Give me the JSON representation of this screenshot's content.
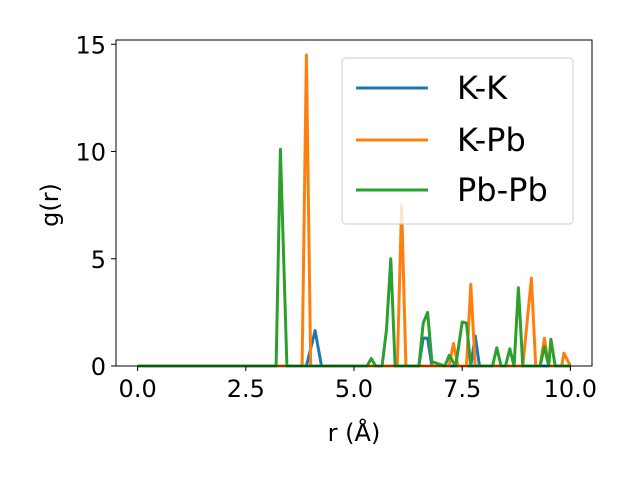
{
  "chart_data": {
    "type": "line",
    "title": "",
    "xlabel": "r (Å)",
    "ylabel": "g(r)",
    "xlim": [
      -0.5,
      10.5
    ],
    "ylim": [
      0,
      15.2
    ],
    "xticks": [
      0.0,
      2.5,
      5.0,
      7.5,
      10.0
    ],
    "xtick_labels": [
      "0.0",
      "2.5",
      "5.0",
      "7.5",
      "10.0"
    ],
    "yticks": [
      0,
      5,
      10,
      15
    ],
    "ytick_labels": [
      "0",
      "5",
      "10",
      "15"
    ],
    "grid": false,
    "legend_position": "top-right",
    "series": [
      {
        "name": "K-K",
        "color": "#1f77b4",
        "points": [
          [
            0.0,
            0
          ],
          [
            3.9,
            0
          ],
          [
            4.1,
            1.65
          ],
          [
            4.25,
            0
          ],
          [
            6.5,
            0
          ],
          [
            6.6,
            1.3
          ],
          [
            6.7,
            1.3
          ],
          [
            6.8,
            0
          ],
          [
            7.7,
            0
          ],
          [
            7.8,
            1.4
          ],
          [
            7.9,
            0
          ],
          [
            10.0,
            0
          ]
        ]
      },
      {
        "name": "K-Pb",
        "color": "#ff7f0e",
        "points": [
          [
            0.0,
            0
          ],
          [
            3.8,
            0
          ],
          [
            3.9,
            14.5
          ],
          [
            4.0,
            0
          ],
          [
            6.0,
            0
          ],
          [
            6.1,
            7.5
          ],
          [
            6.2,
            0
          ],
          [
            7.2,
            0
          ],
          [
            7.3,
            1.05
          ],
          [
            7.4,
            0
          ],
          [
            7.6,
            0
          ],
          [
            7.7,
            3.8
          ],
          [
            7.8,
            0
          ],
          [
            8.9,
            0
          ],
          [
            9.1,
            4.1
          ],
          [
            9.2,
            0
          ],
          [
            9.3,
            0
          ],
          [
            9.4,
            1.3
          ],
          [
            9.5,
            0
          ],
          [
            9.8,
            0
          ],
          [
            9.85,
            0.6
          ],
          [
            10.0,
            0
          ]
        ]
      },
      {
        "name": "Pb-Pb",
        "color": "#2ca02c",
        "points": [
          [
            0.0,
            0
          ],
          [
            3.2,
            0
          ],
          [
            3.3,
            10.1
          ],
          [
            3.45,
            0
          ],
          [
            5.3,
            0
          ],
          [
            5.4,
            0.35
          ],
          [
            5.5,
            0
          ],
          [
            5.65,
            0
          ],
          [
            5.75,
            1.7
          ],
          [
            5.85,
            5.0
          ],
          [
            5.95,
            0
          ],
          [
            6.5,
            0
          ],
          [
            6.6,
            2.0
          ],
          [
            6.7,
            2.5
          ],
          [
            6.8,
            0.2
          ],
          [
            7.1,
            0
          ],
          [
            7.2,
            0.5
          ],
          [
            7.35,
            0
          ],
          [
            7.5,
            2.05
          ],
          [
            7.6,
            2.0
          ],
          [
            7.7,
            0
          ],
          [
            8.2,
            0
          ],
          [
            8.3,
            0.85
          ],
          [
            8.4,
            0
          ],
          [
            8.5,
            0
          ],
          [
            8.6,
            0.8
          ],
          [
            8.7,
            0
          ],
          [
            8.8,
            3.65
          ],
          [
            8.9,
            0
          ],
          [
            9.3,
            0
          ],
          [
            9.4,
            0.9
          ],
          [
            9.5,
            0
          ],
          [
            9.55,
            1.25
          ],
          [
            9.65,
            0
          ],
          [
            10.0,
            0
          ]
        ]
      }
    ]
  }
}
